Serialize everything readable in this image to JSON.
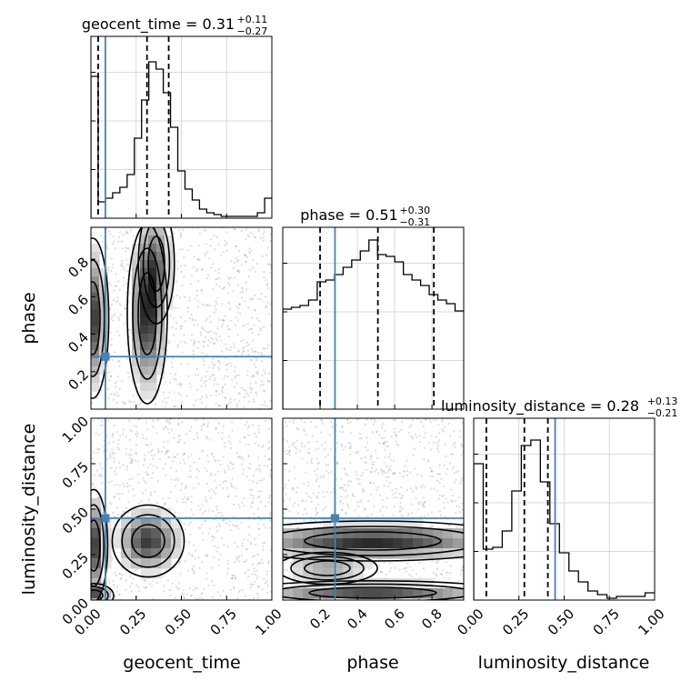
{
  "chart_data": {
    "type": "corner",
    "parameters": [
      "geocent_time",
      "phase",
      "luminosity_distance"
    ],
    "titles": [
      {
        "label": "geocent_time = 0.31",
        "upper": "+0.11",
        "lower": "−0.27"
      },
      {
        "label": "phase = 0.51",
        "upper": "+0.30",
        "lower": "−0.31"
      },
      {
        "label": "luminosity_distance = 0.28",
        "upper": "+0.13",
        "lower": "−0.21"
      }
    ],
    "ranges": [
      [
        0,
        1
      ],
      [
        0,
        0.97
      ],
      [
        0,
        1
      ]
    ],
    "ticks": {
      "geocent_time": [
        "0.00",
        "0.25",
        "0.50",
        "0.75",
        "1.00"
      ],
      "phase": [
        "0.2",
        "0.4",
        "0.6",
        "0.8"
      ],
      "luminosity_distance": [
        "0.00",
        "0.25",
        "0.50",
        "0.75",
        "1.00"
      ]
    },
    "truths": [
      0.08,
      0.28,
      0.45
    ],
    "quantiles": [
      [
        0.04,
        0.31,
        0.43
      ],
      [
        0.2,
        0.51,
        0.81
      ],
      [
        0.07,
        0.28,
        0.41
      ]
    ],
    "histograms": [
      {
        "parameter": "geocent_time",
        "counts": [
          0.78,
          0.09,
          0.11,
          0.14,
          0.17,
          0.24,
          0.44,
          0.65,
          0.86,
          0.82,
          0.69,
          0.5,
          0.26,
          0.16,
          0.1,
          0.05,
          0.03,
          0.02,
          0.01,
          0.01,
          0.01,
          0.01,
          0.01,
          0.03,
          0.11
        ]
      },
      {
        "parameter": "phase",
        "counts": [
          0.55,
          0.56,
          0.57,
          0.6,
          0.7,
          0.71,
          0.74,
          0.78,
          0.82,
          0.87,
          0.93,
          0.85,
          0.84,
          0.81,
          0.74,
          0.71,
          0.68,
          0.63,
          0.6,
          0.58,
          0.54
        ]
      },
      {
        "parameter": "luminosity_distance",
        "counts": [
          0.75,
          0.28,
          0.29,
          0.38,
          0.6,
          0.85,
          0.88,
          0.65,
          0.42,
          0.26,
          0.16,
          0.1,
          0.05,
          0.03,
          0.01,
          0.02,
          0.02,
          0.02,
          0.04
        ]
      }
    ],
    "density_2d": [
      {
        "x": "geocent_time",
        "y": "phase",
        "peaks": [
          {
            "x": 0.0,
            "y": 0.6,
            "level": "high"
          },
          {
            "x": 0.31,
            "y": 0.45,
            "level": "high"
          },
          {
            "x": 0.36,
            "y": 0.7,
            "level": "mid"
          }
        ]
      },
      {
        "x": "geocent_time",
        "y": "luminosity_distance",
        "peaks": [
          {
            "x": 0.0,
            "y": 0.32,
            "level": "high"
          },
          {
            "x": 0.31,
            "y": 0.33,
            "level": "high"
          }
        ]
      },
      {
        "x": "phase",
        "y": "luminosity_distance",
        "peaks": [
          {
            "x": 0.5,
            "y": 0.32,
            "level": "high"
          },
          {
            "x": 0.5,
            "y": 0.02,
            "level": "high"
          }
        ]
      }
    ],
    "truth_color": "#4682b4",
    "grid": true
  }
}
